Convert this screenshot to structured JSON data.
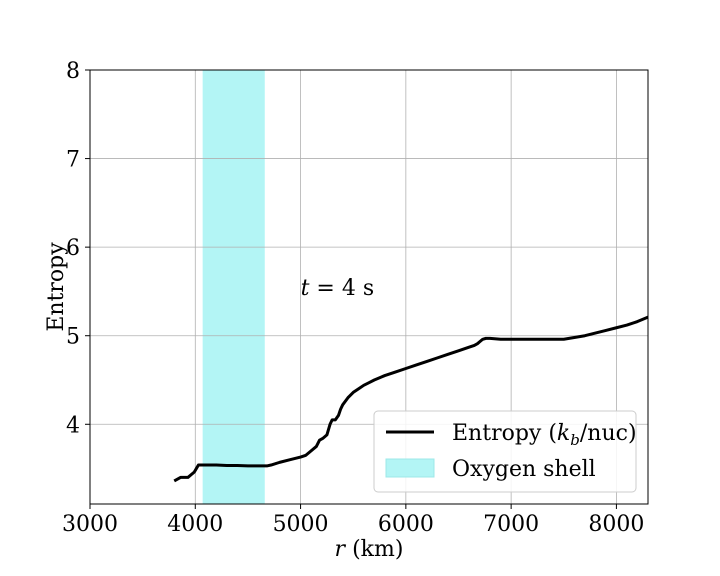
{
  "chart_data": {
    "type": "line",
    "xlabel_var": "r",
    "xlabel_unit": " (km)",
    "ylabel": "Entropy",
    "xlim": [
      3000,
      8300
    ],
    "ylim": [
      3.1,
      8.0
    ],
    "xticks": [
      3000,
      4000,
      5000,
      6000,
      7000,
      8000
    ],
    "yticks": [
      4,
      5,
      6,
      7,
      8
    ],
    "grid": true,
    "legend_position": "lower-right",
    "series": [
      {
        "name": "Entropy (k_b/nuc)",
        "name_main": "Entropy (",
        "name_sym": "k",
        "name_sub": "b",
        "name_tail": "/nuc)",
        "color": "#000000",
        "x": [
          3800,
          3830,
          3860,
          3900,
          3930,
          3960,
          3990,
          4010,
          4030,
          4050,
          4100,
          4200,
          4300,
          4400,
          4500,
          4600,
          4680,
          4720,
          4800,
          4900,
          5000,
          5050,
          5100,
          5150,
          5180,
          5210,
          5250,
          5280,
          5300,
          5330,
          5360,
          5380,
          5400,
          5450,
          5500,
          5550,
          5600,
          5650,
          5700,
          5800,
          5900,
          6000,
          6100,
          6200,
          6300,
          6400,
          6500,
          6600,
          6650,
          6680,
          6700,
          6730,
          6760,
          6800,
          6900,
          7000,
          7200,
          7400,
          7500,
          7600,
          7700,
          7800,
          7900,
          8000,
          8100,
          8200,
          8300
        ],
        "y": [
          3.36,
          3.38,
          3.4,
          3.4,
          3.4,
          3.43,
          3.46,
          3.5,
          3.54,
          3.54,
          3.54,
          3.54,
          3.535,
          3.535,
          3.53,
          3.53,
          3.53,
          3.54,
          3.57,
          3.6,
          3.63,
          3.65,
          3.7,
          3.75,
          3.82,
          3.84,
          3.88,
          4.0,
          4.05,
          4.05,
          4.1,
          4.17,
          4.22,
          4.3,
          4.36,
          4.4,
          4.44,
          4.47,
          4.5,
          4.55,
          4.59,
          4.63,
          4.67,
          4.71,
          4.75,
          4.79,
          4.83,
          4.87,
          4.89,
          4.91,
          4.93,
          4.96,
          4.97,
          4.97,
          4.96,
          4.96,
          4.96,
          4.96,
          4.96,
          4.98,
          5.0,
          5.03,
          5.06,
          5.09,
          5.12,
          5.16,
          5.21
        ]
      }
    ],
    "shaded_regions": [
      {
        "name": "Oxygen shell",
        "xmin": 4070,
        "xmax": 4660,
        "color": "#b3f5f5"
      }
    ],
    "annotation": {
      "var": "t",
      "text": " = 4 s",
      "x": 5000,
      "y": 5.55
    }
  }
}
